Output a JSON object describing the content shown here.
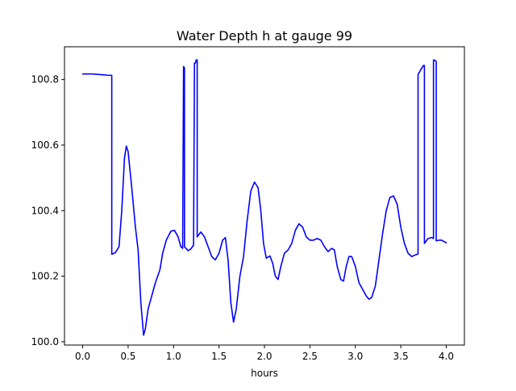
{
  "chart_data": {
    "type": "line",
    "title": "Water Depth h at gauge 99",
    "xlabel": "hours",
    "ylabel": "",
    "xlim": [
      -0.2,
      4.2
    ],
    "ylim": [
      99.99,
      100.9
    ],
    "x_ticks": [
      0.0,
      0.5,
      1.0,
      1.5,
      2.0,
      2.5,
      3.0,
      3.5,
      4.0
    ],
    "x_tick_labels": [
      "0.0",
      "0.5",
      "1.0",
      "1.5",
      "2.0",
      "2.5",
      "3.0",
      "3.5",
      "4.0"
    ],
    "y_ticks": [
      100.0,
      100.2,
      100.4,
      100.6,
      100.8
    ],
    "y_tick_labels": [
      "100.0",
      "100.2",
      "100.4",
      "100.6",
      "100.8"
    ],
    "grid": false,
    "legend": null,
    "series": [
      {
        "color": "#0000ff",
        "points": [
          [
            0.0,
            100.817
          ],
          [
            0.1,
            100.817
          ],
          [
            0.2,
            100.815
          ],
          [
            0.28,
            100.813
          ],
          [
            0.32,
            100.813
          ],
          [
            0.32,
            100.267
          ],
          [
            0.36,
            100.272
          ],
          [
            0.4,
            100.29
          ],
          [
            0.43,
            100.4
          ],
          [
            0.46,
            100.56
          ],
          [
            0.48,
            100.597
          ],
          [
            0.5,
            100.58
          ],
          [
            0.54,
            100.47
          ],
          [
            0.58,
            100.35
          ],
          [
            0.61,
            100.28
          ],
          [
            0.64,
            100.12
          ],
          [
            0.67,
            100.02
          ],
          [
            0.69,
            100.04
          ],
          [
            0.72,
            100.1
          ],
          [
            0.76,
            100.14
          ],
          [
            0.8,
            100.18
          ],
          [
            0.85,
            100.22
          ],
          [
            0.88,
            100.27
          ],
          [
            0.92,
            100.31
          ],
          [
            0.97,
            100.337
          ],
          [
            1.01,
            100.34
          ],
          [
            1.05,
            100.32
          ],
          [
            1.08,
            100.29
          ],
          [
            1.1,
            100.285
          ],
          [
            1.11,
            100.84
          ],
          [
            1.12,
            100.835
          ],
          [
            1.12,
            100.29
          ],
          [
            1.16,
            100.278
          ],
          [
            1.19,
            100.283
          ],
          [
            1.22,
            100.295
          ],
          [
            1.23,
            100.85
          ],
          [
            1.24,
            100.85
          ],
          [
            1.25,
            100.86
          ],
          [
            1.26,
            100.86
          ],
          [
            1.26,
            100.32
          ],
          [
            1.3,
            100.335
          ],
          [
            1.34,
            100.32
          ],
          [
            1.38,
            100.29
          ],
          [
            1.42,
            100.26
          ],
          [
            1.46,
            100.25
          ],
          [
            1.5,
            100.27
          ],
          [
            1.54,
            100.31
          ],
          [
            1.57,
            100.318
          ],
          [
            1.6,
            100.25
          ],
          [
            1.63,
            100.12
          ],
          [
            1.66,
            100.06
          ],
          [
            1.69,
            100.1
          ],
          [
            1.73,
            100.2
          ],
          [
            1.77,
            100.26
          ],
          [
            1.81,
            100.37
          ],
          [
            1.85,
            100.46
          ],
          [
            1.89,
            100.487
          ],
          [
            1.93,
            100.47
          ],
          [
            1.96,
            100.4
          ],
          [
            1.99,
            100.3
          ],
          [
            2.02,
            100.255
          ],
          [
            2.06,
            100.262
          ],
          [
            2.09,
            100.24
          ],
          [
            2.12,
            100.2
          ],
          [
            2.15,
            100.19
          ],
          [
            2.18,
            100.23
          ],
          [
            2.22,
            100.27
          ],
          [
            2.26,
            100.28
          ],
          [
            2.3,
            100.3
          ],
          [
            2.34,
            100.34
          ],
          [
            2.38,
            100.36
          ],
          [
            2.42,
            100.35
          ],
          [
            2.46,
            100.32
          ],
          [
            2.5,
            100.31
          ],
          [
            2.54,
            100.31
          ],
          [
            2.58,
            100.315
          ],
          [
            2.62,
            100.31
          ],
          [
            2.66,
            100.29
          ],
          [
            2.7,
            100.275
          ],
          [
            2.74,
            100.285
          ],
          [
            2.77,
            100.28
          ],
          [
            2.8,
            100.23
          ],
          [
            2.84,
            100.19
          ],
          [
            2.87,
            100.185
          ],
          [
            2.9,
            100.23
          ],
          [
            2.93,
            100.26
          ],
          [
            2.96,
            100.26
          ],
          [
            3.0,
            100.23
          ],
          [
            3.04,
            100.18
          ],
          [
            3.08,
            100.16
          ],
          [
            3.12,
            100.14
          ],
          [
            3.15,
            100.13
          ],
          [
            3.18,
            100.135
          ],
          [
            3.22,
            100.17
          ],
          [
            3.26,
            100.25
          ],
          [
            3.3,
            100.33
          ],
          [
            3.34,
            100.4
          ],
          [
            3.38,
            100.44
          ],
          [
            3.42,
            100.445
          ],
          [
            3.46,
            100.42
          ],
          [
            3.5,
            100.35
          ],
          [
            3.54,
            100.3
          ],
          [
            3.58,
            100.27
          ],
          [
            3.62,
            100.26
          ],
          [
            3.66,
            100.265
          ],
          [
            3.69,
            100.268
          ],
          [
            3.69,
            100.815
          ],
          [
            3.72,
            100.83
          ],
          [
            3.75,
            100.843
          ],
          [
            3.76,
            100.843
          ],
          [
            3.76,
            100.3
          ],
          [
            3.8,
            100.315
          ],
          [
            3.84,
            100.318
          ],
          [
            3.86,
            100.315
          ],
          [
            3.86,
            100.86
          ],
          [
            3.88,
            100.858
          ],
          [
            3.89,
            100.855
          ],
          [
            3.89,
            100.308
          ],
          [
            3.92,
            100.31
          ],
          [
            3.95,
            100.31
          ],
          [
            3.98,
            100.305
          ],
          [
            4.0,
            100.302
          ]
        ]
      }
    ]
  }
}
